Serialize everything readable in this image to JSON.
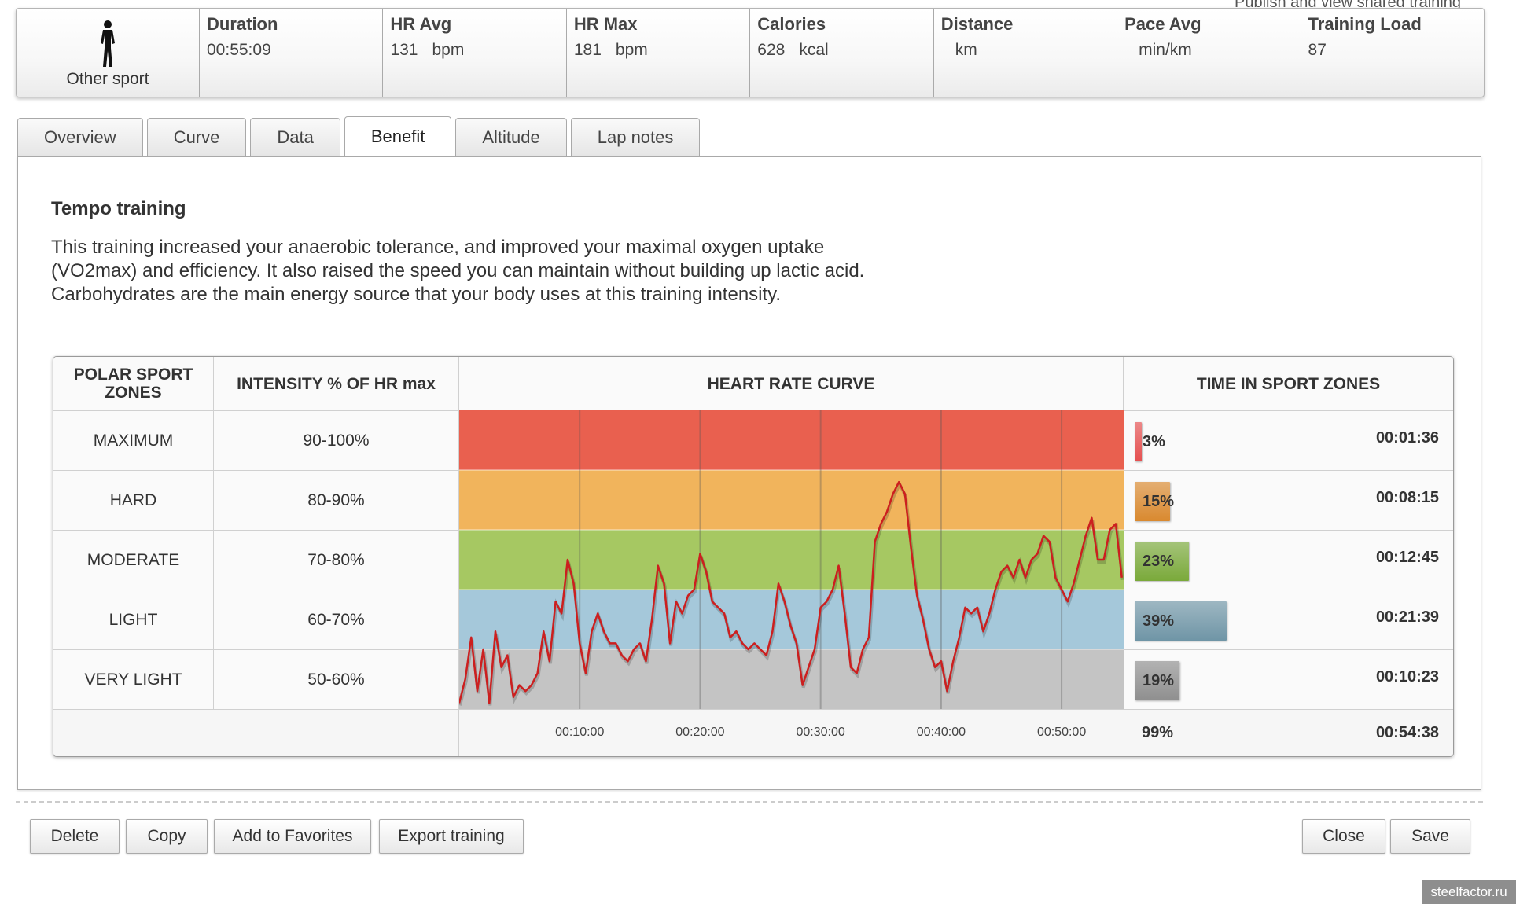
{
  "publish_link": "Publish and view shared training",
  "summary": {
    "sport": {
      "label": "Other sport",
      "icon": "person-silhouette-icon"
    },
    "metrics": [
      {
        "title": "Duration",
        "value": "00:55:09",
        "unit": ""
      },
      {
        "title": "HR Avg",
        "value": "131",
        "unit": "bpm"
      },
      {
        "title": "HR Max",
        "value": "181",
        "unit": "bpm"
      },
      {
        "title": "Calories",
        "value": "628",
        "unit": "kcal"
      },
      {
        "title": "Distance",
        "value": "",
        "unit": "km"
      },
      {
        "title": "Pace Avg",
        "value": "",
        "unit": "min/km"
      },
      {
        "title": "Training Load",
        "value": "87",
        "unit": ""
      }
    ]
  },
  "tabs": [
    {
      "label": "Overview",
      "active": false
    },
    {
      "label": "Curve",
      "active": false
    },
    {
      "label": "Data",
      "active": false
    },
    {
      "label": "Benefit",
      "active": true
    },
    {
      "label": "Altitude",
      "active": false
    },
    {
      "label": "Lap notes",
      "active": false
    }
  ],
  "benefit": {
    "title": "Tempo training",
    "description_lines": [
      "This training increased your anaerobic tolerance, and improved your maximal oxygen uptake",
      "(VO2max) and efficiency. It also raised the speed you can maintain without building up lactic acid.",
      "Carbohydrates are the main energy source that your body uses at this training intensity."
    ]
  },
  "zones_table": {
    "headers": {
      "zones": "POLAR SPORT ZONES",
      "intensity": "INTENSITY % OF HR max",
      "curve": "HEART RATE CURVE",
      "time": "TIME IN SPORT ZONES"
    },
    "rows": [
      {
        "name": "MAXIMUM",
        "intensity": "90-100%",
        "pct": 3,
        "pct_label": "3%",
        "time": "00:01:36",
        "color": "#e9604f",
        "bar_color": "#e55050"
      },
      {
        "name": "HARD",
        "intensity": "80-90%",
        "pct": 15,
        "pct_label": "15%",
        "time": "00:08:15",
        "color": "#f1b45c",
        "bar_color": "#d9892f"
      },
      {
        "name": "MODERATE",
        "intensity": "70-80%",
        "pct": 23,
        "pct_label": "23%",
        "time": "00:12:45",
        "color": "#a6c862",
        "bar_color": "#7aa93a"
      },
      {
        "name": "LIGHT",
        "intensity": "60-70%",
        "pct": 39,
        "pct_label": "39%",
        "time": "00:21:39",
        "color": "#a5c8da",
        "bar_color": "#6f95a6"
      },
      {
        "name": "VERY LIGHT",
        "intensity": "50-60%",
        "pct": 19,
        "pct_label": "19%",
        "time": "00:10:23",
        "color": "#c4c4c4",
        "bar_color": "#8f8f8f"
      }
    ],
    "total": {
      "pct_label": "99%",
      "time": "00:54:38"
    }
  },
  "chart_data": {
    "type": "line",
    "title": "HEART RATE CURVE",
    "x_unit": "minutes",
    "xlim": [
      0,
      55.15
    ],
    "x_ticks": [
      "00:10:00",
      "00:20:00",
      "00:30:00",
      "00:40:00",
      "00:50:00"
    ],
    "y_zone_bounds": [
      50,
      60,
      70,
      80,
      90,
      100
    ],
    "series": [
      {
        "line_color": "#cc1f1f",
        "x": [
          0,
          0.5,
          1,
          1.5,
          2,
          2.5,
          3,
          3.5,
          4,
          4.5,
          5,
          5.5,
          6,
          6.5,
          7,
          7.5,
          8,
          8.5,
          9,
          9.5,
          10,
          10.5,
          11,
          11.5,
          12,
          12.5,
          13,
          13.5,
          14,
          14.5,
          15,
          15.5,
          16,
          16.5,
          17,
          17.5,
          18,
          18.5,
          19,
          19.5,
          20,
          20.5,
          21,
          21.5,
          22,
          22.5,
          23,
          23.5,
          24,
          24.5,
          25,
          25.5,
          26,
          26.5,
          27,
          27.5,
          28,
          28.5,
          29,
          29.5,
          30,
          30.5,
          31,
          31.5,
          32,
          32.5,
          33,
          33.5,
          34,
          34.5,
          35,
          35.5,
          36,
          36.5,
          37,
          37.5,
          38,
          38.5,
          39,
          39.5,
          40,
          40.5,
          41,
          41.5,
          42,
          42.5,
          43,
          43.5,
          44,
          44.5,
          45,
          45.5,
          46,
          46.5,
          47,
          47.5,
          48,
          48.5,
          49,
          49.5,
          50,
          50.5,
          51,
          51.5,
          52,
          52.5,
          53,
          53.5,
          54,
          54.5,
          55
        ],
        "y": [
          51,
          55,
          62,
          53,
          60,
          51,
          63,
          57,
          59,
          52,
          54,
          53,
          54,
          56,
          63,
          58,
          68,
          66,
          75,
          71,
          61,
          56,
          63,
          66,
          63,
          61,
          61,
          59,
          58,
          60,
          61,
          58,
          65,
          74,
          71,
          61,
          68,
          66,
          69,
          70,
          76,
          73,
          68,
          67,
          66,
          62,
          63,
          61,
          60,
          61,
          60,
          59,
          63,
          71,
          68,
          64,
          61,
          54,
          57,
          60,
          67,
          68,
          70,
          74,
          66,
          57,
          56,
          60,
          62,
          78,
          81,
          83,
          86,
          88,
          86,
          77,
          69,
          65,
          60,
          57,
          58,
          53,
          58,
          62,
          67,
          66,
          67,
          63,
          66,
          70,
          73,
          74,
          72,
          75,
          72,
          75,
          76,
          79,
          78,
          72,
          70,
          68,
          71,
          75,
          79,
          82,
          75,
          75,
          80,
          81,
          72
        ]
      }
    ]
  }
}
